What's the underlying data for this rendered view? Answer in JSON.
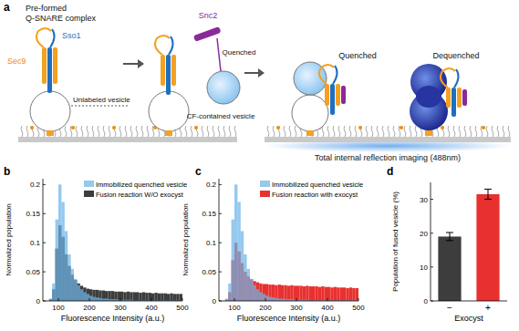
{
  "diagram": {
    "panel_label": "a",
    "texts": {
      "pre_formed": "Pre-formed",
      "q_snare": "Q-SNARE complex",
      "sec9": "Sec9",
      "sso1": "Sso1",
      "unlabeled": "Unlabeled vesicle",
      "snc2": "Snc2",
      "quenched_1": "Quenched",
      "cf_vesicle": "CF-contained vesicle",
      "quenched_2": "Quenched",
      "dequenched": "Dequenched",
      "tirf": "Total internal reflection imaging (488nm)"
    }
  },
  "chart_data": [
    {
      "type": "histogram",
      "panel_label": "b",
      "x_label": "Fluorescence Intensity (a.u.)",
      "y_label": "Normalized population",
      "bins": [
        50,
        60,
        70,
        80,
        90,
        100,
        110,
        120,
        130,
        140,
        150,
        160,
        170,
        180,
        190,
        200,
        210,
        220,
        230,
        240,
        250,
        260,
        270,
        280,
        290,
        300,
        310,
        320,
        330,
        340,
        350,
        360,
        370,
        380,
        390,
        400,
        410,
        420,
        430,
        440,
        450,
        460,
        470,
        480,
        490,
        500
      ],
      "series": [
        {
          "name": "Immobilized quenched vesicle",
          "color": "#6cb4e8",
          "values": [
            0,
            0,
            0.004,
            0.03,
            0.14,
            0.2,
            0.17,
            0.12,
            0.08,
            0.055,
            0.038,
            0.027,
            0.02,
            0.015,
            0.012,
            0.009,
            0.007,
            0.006,
            0.005,
            0.004,
            0.004,
            0.003,
            0.003,
            0.003,
            0.002,
            0.002,
            0.002,
            0.002,
            0.002,
            0.001,
            0.001,
            0.001,
            0.001,
            0.001,
            0.001,
            0.001,
            0.001,
            0.001,
            0.001,
            0.001,
            0.001,
            0.001,
            0.001,
            0.001,
            0.001
          ]
        },
        {
          "name": "Fusion reaction W/O exocyst",
          "color": "#3d3d3d",
          "values": [
            0,
            0,
            0.003,
            0.02,
            0.09,
            0.13,
            0.11,
            0.08,
            0.06,
            0.045,
            0.036,
            0.03,
            0.026,
            0.023,
            0.021,
            0.02,
            0.019,
            0.019,
            0.018,
            0.018,
            0.017,
            0.017,
            0.017,
            0.016,
            0.016,
            0.016,
            0.015,
            0.016,
            0.015,
            0.015,
            0.015,
            0.014,
            0.015,
            0.014,
            0.014,
            0.013,
            0.014,
            0.013,
            0.013,
            0.013,
            0.012,
            0.013,
            0.012,
            0.012,
            0.012
          ]
        }
      ],
      "xlim": [
        50,
        500
      ],
      "xticks": [
        100,
        200,
        300,
        400,
        500
      ],
      "ylim": [
        0,
        0.21
      ],
      "yticks": [
        0,
        0.05,
        0.1,
        0.15,
        0.2
      ],
      "legend": "upper right"
    },
    {
      "type": "histogram",
      "panel_label": "c",
      "x_label": "Fluorescence Intensity (a.u.)",
      "y_label": "Normalized population",
      "bins": [
        50,
        60,
        70,
        80,
        90,
        100,
        110,
        120,
        130,
        140,
        150,
        160,
        170,
        180,
        190,
        200,
        210,
        220,
        230,
        240,
        250,
        260,
        270,
        280,
        290,
        300,
        310,
        320,
        330,
        340,
        350,
        360,
        370,
        380,
        390,
        400,
        410,
        420,
        430,
        440,
        450,
        460,
        470,
        480,
        490,
        500
      ],
      "series": [
        {
          "name": "Immobilized quenched vesicle",
          "color": "#6cb4e8",
          "values": [
            0,
            0,
            0.004,
            0.03,
            0.14,
            0.2,
            0.17,
            0.12,
            0.08,
            0.055,
            0.038,
            0.027,
            0.02,
            0.015,
            0.012,
            0.009,
            0.007,
            0.006,
            0.005,
            0.004,
            0.004,
            0.003,
            0.003,
            0.003,
            0.002,
            0.002,
            0.002,
            0.002,
            0.002,
            0.001,
            0.001,
            0.001,
            0.001,
            0.001,
            0.001,
            0.001,
            0.001,
            0.001,
            0.001,
            0.001,
            0.001,
            0.001,
            0.001,
            0.001,
            0.001
          ]
        },
        {
          "name": "Fusion reaction with exocyst",
          "color": "#e8312f",
          "values": [
            0,
            0,
            0.002,
            0.015,
            0.07,
            0.1,
            0.085,
            0.065,
            0.05,
            0.042,
            0.037,
            0.034,
            0.032,
            0.03,
            0.029,
            0.029,
            0.028,
            0.028,
            0.027,
            0.028,
            0.027,
            0.027,
            0.026,
            0.027,
            0.026,
            0.026,
            0.026,
            0.025,
            0.026,
            0.025,
            0.025,
            0.025,
            0.024,
            0.025,
            0.024,
            0.024,
            0.023,
            0.024,
            0.023,
            0.023,
            0.023,
            0.022,
            0.023,
            0.022,
            0.022
          ]
        }
      ],
      "xlim": [
        50,
        500
      ],
      "xticks": [
        100,
        200,
        300,
        400,
        500
      ],
      "ylim": [
        0,
        0.21
      ],
      "yticks": [
        0,
        0.05,
        0.1,
        0.15,
        0.2
      ],
      "legend": "upper right"
    },
    {
      "type": "bar",
      "panel_label": "d",
      "x_label": "Exocyst",
      "y_label": "Population of fused vesicle (%)",
      "categories": [
        "−",
        "+"
      ],
      "values": [
        19,
        31.5
      ],
      "errors": [
        1.2,
        1.5
      ],
      "colors": [
        "#3d3d3d",
        "#e8312f"
      ],
      "ylim": [
        0,
        35
      ],
      "yticks": [
        0,
        10,
        20,
        30
      ]
    }
  ]
}
